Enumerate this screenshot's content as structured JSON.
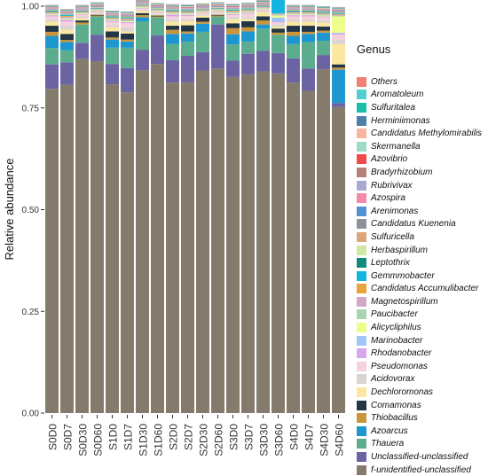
{
  "chart_data": {
    "type": "bar",
    "stacked": true,
    "ylabel": "Relative abundance",
    "xlabel": "",
    "ylim": [
      0,
      1
    ],
    "yticks": [
      "0.00",
      "0.25",
      "0.50",
      "0.75",
      "1.00"
    ],
    "categories": [
      "S0D0",
      "S0D7",
      "S0D30",
      "S0D60",
      "S1D0",
      "S1D7",
      "S1D30",
      "S1D60",
      "S2D0",
      "S2D7",
      "S2D30",
      "S2D60",
      "S3D0",
      "S3D7",
      "S3D30",
      "S3D60",
      "S4D0",
      "S4D7",
      "S4D30",
      "S4D60"
    ],
    "legend_title": "Genus",
    "series": [
      {
        "name": "f-unidentified-unclassified",
        "color": "#857B6C",
        "values": [
          0.797,
          0.807,
          0.87,
          0.865,
          0.808,
          0.788,
          0.843,
          0.858,
          0.812,
          0.813,
          0.842,
          0.847,
          0.826,
          0.833,
          0.84,
          0.835,
          0.812,
          0.792,
          0.845,
          0.752
        ]
      },
      {
        "name": "Unclassified-unclassified",
        "color": "#6C63A3",
        "values": [
          0.06,
          0.055,
          0.04,
          0.065,
          0.05,
          0.06,
          0.05,
          0.07,
          0.055,
          0.065,
          0.045,
          0.108,
          0.04,
          0.05,
          0.05,
          0.05,
          0.06,
          0.055,
          0.035,
          0.01
        ]
      },
      {
        "name": "Thauera",
        "color": "#5BAD8E",
        "values": [
          0.04,
          0.03,
          0.045,
          0.045,
          0.04,
          0.05,
          0.07,
          0.045,
          0.04,
          0.035,
          0.05,
          0.02,
          0.04,
          0.03,
          0.055,
          0.045,
          0.035,
          0.065,
          0.035,
          0.0
        ]
      },
      {
        "name": "Azoarcus",
        "color": "#1E96CF",
        "values": [
          0.03,
          0.02,
          0.0,
          0.0,
          0.02,
          0.015,
          0.01,
          0.0,
          0.025,
          0.02,
          0.02,
          0.0,
          0.025,
          0.025,
          0.01,
          0.0,
          0.02,
          0.02,
          0.02,
          0.082
        ]
      },
      {
        "name": "Thiobacillus",
        "color": "#C9963B",
        "values": [
          0.01,
          0.005,
          0.005,
          0.002,
          0.005,
          0.005,
          0.005,
          0.002,
          0.01,
          0.005,
          0.005,
          0.002,
          0.015,
          0.01,
          0.01,
          0.005,
          0.01,
          0.005,
          0.005,
          0.005
        ]
      },
      {
        "name": "Comamonas",
        "color": "#233645",
        "values": [
          0.015,
          0.015,
          0.005,
          0.002,
          0.015,
          0.015,
          0.005,
          0.002,
          0.01,
          0.015,
          0.01,
          0.002,
          0.012,
          0.015,
          0.01,
          0.01,
          0.015,
          0.015,
          0.01,
          0.008
        ]
      },
      {
        "name": "Dechloromonas",
        "color": "#FCE7A1",
        "values": [
          0.01,
          0.01,
          0.005,
          0.002,
          0.01,
          0.005,
          0.005,
          0.002,
          0.01,
          0.01,
          0.005,
          0.002,
          0.01,
          0.005,
          0.01,
          0.005,
          0.01,
          0.01,
          0.01,
          0.05
        ]
      },
      {
        "name": "Acidovorax",
        "color": "#D9D4D0",
        "values": [
          0.005,
          0.01,
          0.005,
          0.002,
          0.005,
          0.01,
          0.002,
          0.002,
          0.005,
          0.005,
          0.002,
          0.002,
          0.005,
          0.005,
          0.002,
          0.005,
          0.005,
          0.005,
          0.005,
          0.01
        ]
      },
      {
        "name": "Pseudomonas",
        "color": "#F6D2DC",
        "values": [
          0.008,
          0.01,
          0.003,
          0.003,
          0.008,
          0.01,
          0.003,
          0.003,
          0.008,
          0.008,
          0.003,
          0.003,
          0.005,
          0.008,
          0.003,
          0.005,
          0.008,
          0.008,
          0.008,
          0.013
        ]
      },
      {
        "name": "Rhodanobacter",
        "color": "#D8A6EE",
        "values": [
          0.003,
          0.005,
          0.002,
          0.002,
          0.003,
          0.003,
          0.002,
          0.002,
          0.005,
          0.003,
          0.002,
          0.002,
          0.003,
          0.003,
          0.002,
          0.002,
          0.003,
          0.003,
          0.002,
          0.003
        ]
      },
      {
        "name": "Marinobacter",
        "color": "#9FC6F6",
        "values": [
          0.0,
          0.0,
          0.0,
          0.0,
          0.0,
          0.0,
          0.0,
          0.0,
          0.0,
          0.0,
          0.0,
          0.0,
          0.0,
          0.0,
          0.0,
          0.01,
          0.0,
          0.0,
          0.0,
          0.002
        ]
      },
      {
        "name": "Alicycliphilus",
        "color": "#EFFD8C",
        "values": [
          0.002,
          0.002,
          0.002,
          0.002,
          0.002,
          0.002,
          0.002,
          0.002,
          0.002,
          0.002,
          0.002,
          0.002,
          0.002,
          0.002,
          0.002,
          0.005,
          0.002,
          0.002,
          0.002,
          0.04
        ]
      },
      {
        "name": "Paucibacter",
        "color": "#A9D6B2",
        "values": [
          0.002,
          0.002,
          0.002,
          0.002,
          0.002,
          0.002,
          0.002,
          0.002,
          0.002,
          0.002,
          0.002,
          0.002,
          0.002,
          0.002,
          0.002,
          0.002,
          0.002,
          0.002,
          0.002,
          0.002
        ]
      },
      {
        "name": "Magnetospirillum",
        "color": "#D3A9C4",
        "values": [
          0.002,
          0.003,
          0.002,
          0.001,
          0.002,
          0.003,
          0.002,
          0.001,
          0.002,
          0.002,
          0.002,
          0.001,
          0.002,
          0.002,
          0.002,
          0.002,
          0.002,
          0.002,
          0.002,
          0.002
        ]
      },
      {
        "name": "Candidatus Accumulibacter",
        "color": "#E8A33A",
        "values": [
          0.002,
          0.002,
          0.001,
          0.001,
          0.002,
          0.002,
          0.001,
          0.001,
          0.002,
          0.002,
          0.001,
          0.001,
          0.002,
          0.002,
          0.001,
          0.001,
          0.002,
          0.002,
          0.002,
          0.002
        ]
      },
      {
        "name": "Gemmmobacter",
        "color": "#12B4E0",
        "values": [
          0.002,
          0.002,
          0.001,
          0.001,
          0.002,
          0.002,
          0.001,
          0.001,
          0.002,
          0.002,
          0.001,
          0.001,
          0.002,
          0.002,
          0.001,
          0.05,
          0.002,
          0.002,
          0.002,
          0.002
        ]
      },
      {
        "name": "Leptothrix",
        "color": "#128A7D",
        "values": [
          0.001,
          0.001,
          0.001,
          0.001,
          0.001,
          0.001,
          0.001,
          0.001,
          0.001,
          0.001,
          0.001,
          0.001,
          0.001,
          0.001,
          0.001,
          0.001,
          0.001,
          0.001,
          0.001,
          0.001
        ]
      },
      {
        "name": "Herbaspirillum",
        "color": "#CFE8A6",
        "values": [
          0.001,
          0.001,
          0.001,
          0.001,
          0.001,
          0.001,
          0.001,
          0.001,
          0.001,
          0.001,
          0.001,
          0.001,
          0.001,
          0.001,
          0.001,
          0.001,
          0.001,
          0.001,
          0.001,
          0.001
        ]
      },
      {
        "name": "Sulfuricella",
        "color": "#DBA779",
        "values": [
          0.001,
          0.001,
          0.001,
          0.001,
          0.001,
          0.001,
          0.001,
          0.001,
          0.001,
          0.001,
          0.001,
          0.001,
          0.001,
          0.001,
          0.001,
          0.001,
          0.001,
          0.001,
          0.001,
          0.001
        ]
      },
      {
        "name": "Candidatus Kuenenia",
        "color": "#8C9299",
        "values": [
          0.001,
          0.001,
          0.001,
          0.001,
          0.001,
          0.001,
          0.001,
          0.001,
          0.001,
          0.001,
          0.001,
          0.001,
          0.001,
          0.001,
          0.001,
          0.001,
          0.001,
          0.001,
          0.001,
          0.001
        ]
      },
      {
        "name": "Arenimonas",
        "color": "#5390D6",
        "values": [
          0.001,
          0.001,
          0.001,
          0.001,
          0.001,
          0.001,
          0.001,
          0.001,
          0.001,
          0.001,
          0.001,
          0.001,
          0.001,
          0.001,
          0.001,
          0.001,
          0.001,
          0.001,
          0.001,
          0.001
        ]
      },
      {
        "name": "Azospira",
        "color": "#F48AA8",
        "values": [
          0.001,
          0.001,
          0.001,
          0.001,
          0.001,
          0.001,
          0.001,
          0.001,
          0.001,
          0.001,
          0.001,
          0.001,
          0.001,
          0.001,
          0.001,
          0.001,
          0.001,
          0.001,
          0.001,
          0.001
        ]
      },
      {
        "name": "Rubrivivax",
        "color": "#A9A7D4",
        "values": [
          0.001,
          0.001,
          0.001,
          0.001,
          0.001,
          0.001,
          0.001,
          0.001,
          0.001,
          0.001,
          0.001,
          0.001,
          0.001,
          0.001,
          0.001,
          0.001,
          0.001,
          0.001,
          0.001,
          0.001
        ]
      },
      {
        "name": "Bradyrhizobium",
        "color": "#B5807A",
        "values": [
          0.001,
          0.001,
          0.001,
          0.001,
          0.001,
          0.001,
          0.001,
          0.001,
          0.001,
          0.001,
          0.001,
          0.001,
          0.001,
          0.001,
          0.001,
          0.001,
          0.001,
          0.001,
          0.001,
          0.001
        ]
      },
      {
        "name": "Azovibrio",
        "color": "#F24848",
        "values": [
          0.001,
          0.001,
          0.001,
          0.001,
          0.001,
          0.001,
          0.001,
          0.001,
          0.001,
          0.001,
          0.001,
          0.001,
          0.001,
          0.001,
          0.001,
          0.001,
          0.001,
          0.001,
          0.001,
          0.001
        ]
      },
      {
        "name": "Skermanella",
        "color": "#9DDBC9",
        "values": [
          0.001,
          0.001,
          0.001,
          0.001,
          0.001,
          0.001,
          0.001,
          0.001,
          0.001,
          0.001,
          0.001,
          0.001,
          0.001,
          0.001,
          0.001,
          0.001,
          0.001,
          0.001,
          0.001,
          0.001
        ]
      },
      {
        "name": "Candidatus Methylomirabilis",
        "color": "#F8B6A0",
        "values": [
          0.001,
          0.001,
          0.001,
          0.001,
          0.001,
          0.001,
          0.001,
          0.001,
          0.001,
          0.001,
          0.001,
          0.001,
          0.001,
          0.001,
          0.001,
          0.001,
          0.001,
          0.001,
          0.001,
          0.001
        ]
      },
      {
        "name": "Herminiimonas",
        "color": "#4E7FA8",
        "values": [
          0.001,
          0.001,
          0.001,
          0.001,
          0.001,
          0.001,
          0.001,
          0.001,
          0.001,
          0.001,
          0.001,
          0.001,
          0.001,
          0.001,
          0.001,
          0.001,
          0.001,
          0.001,
          0.001,
          0.001
        ]
      },
      {
        "name": "Sulfuritalea",
        "color": "#17BFA7",
        "values": [
          0.001,
          0.001,
          0.001,
          0.001,
          0.001,
          0.001,
          0.001,
          0.001,
          0.001,
          0.001,
          0.001,
          0.001,
          0.001,
          0.001,
          0.001,
          0.001,
          0.001,
          0.001,
          0.001,
          0.001
        ]
      },
      {
        "name": "Aromatoleum",
        "color": "#4FCFD0",
        "values": [
          0.001,
          0.001,
          0.001,
          0.001,
          0.001,
          0.001,
          0.001,
          0.001,
          0.001,
          0.001,
          0.001,
          0.001,
          0.001,
          0.001,
          0.001,
          0.001,
          0.001,
          0.001,
          0.001,
          0.001
        ]
      },
      {
        "name": "Others",
        "color": "#F08070",
        "values": [
          0.001,
          0.001,
          0.001,
          0.001,
          0.001,
          0.001,
          0.001,
          0.001,
          0.001,
          0.001,
          0.001,
          0.001,
          0.001,
          0.001,
          0.001,
          0.001,
          0.001,
          0.001,
          0.001,
          0.001
        ]
      }
    ]
  }
}
